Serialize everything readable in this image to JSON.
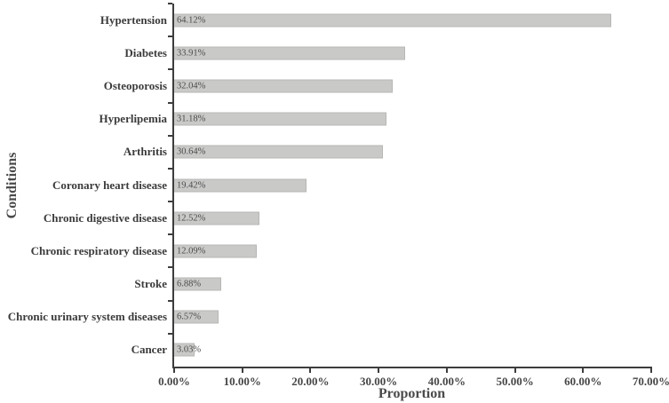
{
  "chart_data": {
    "type": "bar",
    "orientation": "horizontal",
    "title": "",
    "xlabel": "Proportion",
    "ylabel": "Conditions",
    "xlim": [
      0,
      70
    ],
    "grid": false,
    "legend": "none",
    "categories": [
      "Hypertension",
      "Diabetes",
      "Osteoporosis",
      "Hyperlipemia",
      "Arthritis",
      "Coronary heart disease",
      "Chronic digestive disease",
      "Chronic respiratory disease",
      "Stroke",
      "Chronic urinary system diseases",
      "Cancer"
    ],
    "values": [
      64.12,
      33.91,
      32.04,
      31.18,
      30.64,
      19.42,
      12.52,
      12.09,
      6.88,
      6.57,
      3.03
    ],
    "value_labels": [
      "64.12%",
      "33.91%",
      "32.04%",
      "31.18%",
      "30.64%",
      "19.42%",
      "12.52%",
      "12.09%",
      "6.88%",
      "6.57%",
      "3.03%"
    ],
    "x_tick_values": [
      0,
      10,
      20,
      30,
      40,
      50,
      60,
      70
    ],
    "x_tick_labels": [
      "0.00%",
      "10.00%",
      "20.00%",
      "30.00%",
      "40.00%",
      "50.00%",
      "60.00%",
      "70.00%"
    ]
  },
  "colors": {
    "bar_fill": "#c9c9c8",
    "bar_border": "#b7b7b6",
    "axis": "#3d3d3d",
    "category_label": "#3b3b3b",
    "value_label": "#4c4c4c",
    "tick_label": "#474747",
    "axis_title": "#4a4a4a",
    "background": "#ffffff"
  }
}
